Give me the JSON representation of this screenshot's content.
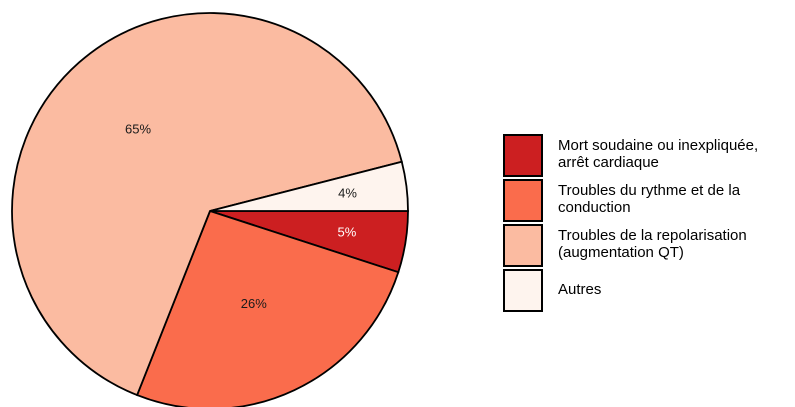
{
  "chart_data": {
    "type": "pie",
    "slices": [
      {
        "label": "Mort soudaine ou inexpliquée, arrêt cardiaque",
        "value": 5,
        "value_label": "5%",
        "color": "#cc1f21"
      },
      {
        "label": "Troubles du rythme et de la conduction",
        "value": 26,
        "value_label": "26%",
        "color": "#fa6c4c"
      },
      {
        "label": "Troubles de la repolarisation (augmentation QT)",
        "value": 65,
        "value_label": "65%",
        "color": "#fbbba1"
      },
      {
        "label": "Autres",
        "value": 4,
        "value_label": "4%",
        "color": "#fef4ee"
      }
    ],
    "legend_position": "right",
    "start_angle_deg": 0,
    "direction": "clockwise"
  }
}
